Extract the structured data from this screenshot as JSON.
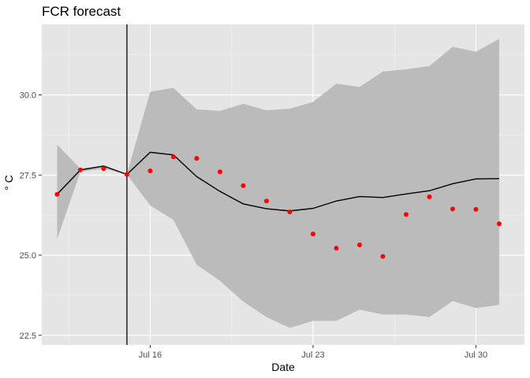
{
  "chart_data": {
    "type": "line",
    "title": "FCR forecast",
    "xlabel": "Date",
    "ylabel": "° C",
    "x_ticks": [
      "Jul 16",
      "Jul 23",
      "Jul 30"
    ],
    "y_ticks": [
      "22.5",
      "25.0",
      "27.5",
      "30.0"
    ],
    "ylim": [
      22.2,
      32.2
    ],
    "xlim": [
      "2018-07-12",
      "2018-07-31"
    ],
    "forecast_start": "2018-07-15",
    "grid": true,
    "series": [
      {
        "x": [
          "2018-07-12",
          "2018-07-13",
          "2018-07-14",
          "2018-07-15",
          "2018-07-16",
          "2018-07-17",
          "2018-07-18",
          "2018-07-19",
          "2018-07-20",
          "2018-07-21",
          "2018-07-22",
          "2018-07-23",
          "2018-07-24",
          "2018-07-25",
          "2018-07-26",
          "2018-07-27",
          "2018-07-28",
          "2018-07-29",
          "2018-07-30",
          "2018-07-31"
        ],
        "mean": [
          26.9,
          27.66,
          27.78,
          27.52,
          28.21,
          28.13,
          27.45,
          26.99,
          26.6,
          26.45,
          26.38,
          26.46,
          26.69,
          26.83,
          26.8,
          26.91,
          27.01,
          27.23,
          27.38,
          27.39
        ],
        "lower": [
          25.5,
          27.6,
          27.7,
          27.52,
          26.55,
          26.1,
          24.7,
          24.2,
          23.55,
          23.07,
          22.73,
          22.95,
          22.95,
          23.3,
          23.15,
          23.15,
          23.07,
          23.57,
          23.35,
          23.45
        ],
        "upper": [
          28.45,
          27.7,
          27.8,
          27.52,
          30.1,
          30.22,
          29.55,
          29.5,
          29.72,
          29.52,
          29.57,
          29.78,
          30.35,
          30.25,
          30.73,
          30.8,
          30.9,
          31.5,
          31.35,
          31.75
        ]
      },
      {
        "x": [
          "2018-07-12",
          "2018-07-13",
          "2018-07-14",
          "2018-07-15",
          "2018-07-16",
          "2018-07-17",
          "2018-07-18",
          "2018-07-19",
          "2018-07-20",
          "2018-07-21",
          "2018-07-22",
          "2018-07-23",
          "2018-07-24",
          "2018-07-25",
          "2018-07-26",
          "2018-07-27",
          "2018-07-28",
          "2018-07-29",
          "2018-07-30",
          "2018-07-31"
        ],
        "y": [
          26.9,
          27.66,
          27.7,
          27.52,
          27.63,
          28.07,
          28.02,
          27.6,
          27.17,
          26.69,
          26.35,
          25.66,
          25.22,
          25.32,
          24.96,
          26.27,
          26.82,
          26.44,
          26.43,
          25.98
        ]
      }
    ],
    "colors": {
      "panel": "#e5e5e5",
      "grid_major": "#ffffff",
      "ribbon": "#bbbbbb",
      "line": "#000000",
      "points": "#ff0000",
      "forecast_start_line": "#000000"
    }
  }
}
